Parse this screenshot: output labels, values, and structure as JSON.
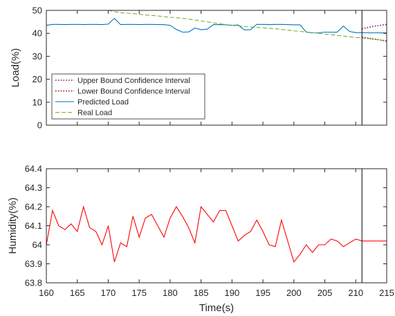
{
  "chart_data": [
    {
      "type": "line",
      "xlabel": "",
      "ylabel": "Load(%)",
      "xlim": [
        160,
        215
      ],
      "ylim": [
        0,
        50
      ],
      "xticks": [
        160,
        165,
        170,
        175,
        180,
        185,
        190,
        195,
        200,
        205,
        210,
        215
      ],
      "yticks": [
        0,
        10,
        20,
        30,
        40,
        50
      ],
      "show_xtick_labels": false,
      "legend_position": "lower-left",
      "vline_x": 211,
      "series": [
        {
          "name": "Upper Bound Confidence Interval",
          "color": "#7e2f8e",
          "style": "dotted",
          "x": [
            211,
            212,
            213,
            214,
            215
          ],
          "y": [
            42.0,
            42.6,
            43.1,
            43.5,
            43.9
          ]
        },
        {
          "name": "Lower Bound Confidence Interval",
          "color": "#a2142f",
          "style": "dotted",
          "x": [
            211,
            212,
            213,
            214,
            215
          ],
          "y": [
            38.3,
            37.9,
            37.5,
            37.1,
            36.6
          ]
        },
        {
          "name": "Predicted Load",
          "color": "#0072bd",
          "style": "solid",
          "x": [
            160,
            161,
            162,
            163,
            164,
            165,
            166,
            167,
            168,
            169,
            170,
            171,
            172,
            173,
            174,
            175,
            176,
            177,
            178,
            179,
            180,
            181,
            182,
            183,
            184,
            185,
            186,
            187,
            188,
            189,
            190,
            191,
            192,
            193,
            194,
            195,
            196,
            197,
            198,
            199,
            200,
            201,
            202,
            203,
            204,
            205,
            206,
            207,
            208,
            209,
            210,
            211,
            212,
            213,
            214,
            215
          ],
          "y": [
            43.5,
            43.9,
            43.9,
            43.8,
            43.9,
            43.9,
            43.8,
            43.9,
            43.9,
            43.8,
            44.0,
            46.5,
            43.8,
            43.9,
            43.9,
            43.8,
            43.9,
            43.9,
            43.8,
            43.8,
            43.5,
            41.7,
            40.5,
            40.6,
            42.3,
            41.6,
            41.8,
            43.8,
            43.8,
            43.7,
            43.5,
            43.6,
            41.5,
            41.6,
            43.9,
            43.9,
            43.8,
            43.9,
            43.9,
            43.8,
            43.7,
            43.7,
            40.5,
            40.2,
            40.2,
            40.5,
            40.5,
            40.5,
            43.2,
            40.8,
            40.3,
            40.3,
            40.2,
            40.2,
            40.2,
            40.2
          ]
        },
        {
          "name": "Real Load",
          "color": "#77ac30",
          "style": "dashed",
          "x": [
            169,
            170,
            171,
            172,
            173,
            174,
            175,
            176,
            177,
            178,
            179,
            180,
            181,
            182,
            183,
            184,
            185,
            186,
            187,
            188,
            189,
            190,
            191,
            192,
            193,
            194,
            195,
            196,
            197,
            198,
            199,
            200,
            201,
            202,
            203,
            204,
            205,
            206,
            207,
            208,
            209,
            210,
            211,
            212,
            213,
            214,
            215
          ],
          "y": [
            50.5,
            50.0,
            49.5,
            49.0,
            48.8,
            48.6,
            48.3,
            48.0,
            47.8,
            47.6,
            47.3,
            47.0,
            46.8,
            46.5,
            46.2,
            45.8,
            45.4,
            45.0,
            44.6,
            44.2,
            43.8,
            43.5,
            43.2,
            43.0,
            42.8,
            42.6,
            42.4,
            42.2,
            42.0,
            41.7,
            41.4,
            41.1,
            40.8,
            40.6,
            40.3,
            40.0,
            39.7,
            39.4,
            39.1,
            38.8,
            38.5,
            38.2,
            38.0,
            37.7,
            37.4,
            37.0,
            36.6
          ]
        }
      ]
    },
    {
      "type": "line",
      "xlabel": "Time(s)",
      "ylabel": "Humidity(%)",
      "xlim": [
        160,
        215
      ],
      "ylim": [
        63.8,
        64.4
      ],
      "xticks": [
        160,
        165,
        170,
        175,
        180,
        185,
        190,
        195,
        200,
        205,
        210,
        215
      ],
      "yticks": [
        63.8,
        63.9,
        64,
        64.1,
        64.2,
        64.3,
        64.4
      ],
      "ytick_labels": [
        "63.8",
        "63.9",
        "64",
        "64.1",
        "64.2",
        "64.3",
        "64.4"
      ],
      "show_xtick_labels": true,
      "vline_x": 211,
      "series": [
        {
          "color": "#ff0000",
          "style": "solid",
          "x": [
            160,
            161,
            162,
            163,
            164,
            165,
            166,
            167,
            168,
            169,
            170,
            171,
            172,
            173,
            174,
            175,
            176,
            177,
            178,
            179,
            180,
            181,
            182,
            183,
            184,
            185,
            186,
            187,
            188,
            189,
            190,
            191,
            192,
            193,
            194,
            195,
            196,
            197,
            198,
            199,
            200,
            201,
            202,
            203,
            204,
            205,
            206,
            207,
            208,
            209,
            210,
            211,
            212,
            213,
            214,
            215
          ],
          "y": [
            64.0,
            64.18,
            64.1,
            64.08,
            64.11,
            64.07,
            64.2,
            64.09,
            64.07,
            64.0,
            64.1,
            63.91,
            64.01,
            63.99,
            64.15,
            64.04,
            64.14,
            64.16,
            64.1,
            64.04,
            64.14,
            64.2,
            64.15,
            64.09,
            64.01,
            64.2,
            64.16,
            64.12,
            64.18,
            64.18,
            64.1,
            64.02,
            64.05,
            64.07,
            64.13,
            64.07,
            64.0,
            63.99,
            64.13,
            64.02,
            63.91,
            63.95,
            64.0,
            63.96,
            64.0,
            64.0,
            64.03,
            64.02,
            63.99,
            64.01,
            64.03,
            64.02,
            64.02,
            64.02,
            64.02,
            64.02
          ]
        }
      ]
    }
  ]
}
